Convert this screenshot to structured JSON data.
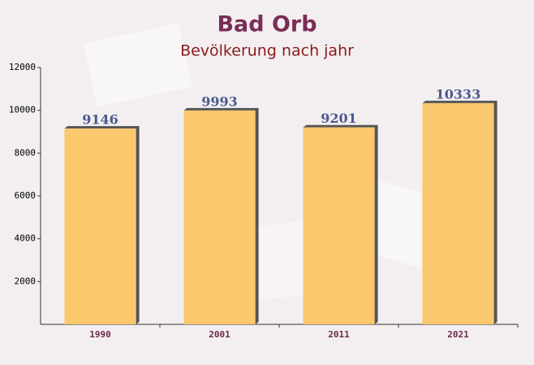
{
  "chart_data": {
    "type": "bar",
    "title": "Bad Orb",
    "subtitle": "Bevölkerung nach jahr",
    "categories": [
      "1990",
      "2001",
      "2011",
      "2021"
    ],
    "values": [
      9146,
      9993,
      9201,
      10333
    ],
    "color": "#fcc35e",
    "ylim": [
      0,
      12000
    ],
    "yticks": [
      2000,
      4000,
      6000,
      8000,
      10000,
      12000
    ]
  }
}
